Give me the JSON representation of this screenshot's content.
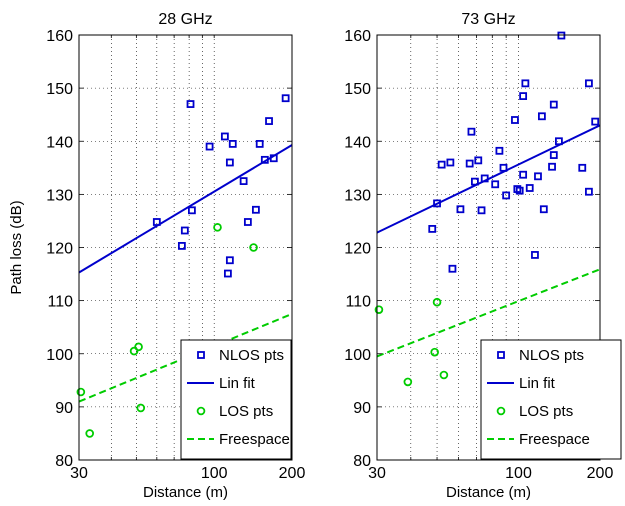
{
  "chart_data": [
    {
      "type": "scatter",
      "title": "28 GHz",
      "xlabel": "Distance (m)",
      "ylabel": "Path loss (dB)",
      "xscale": "log",
      "xlim": [
        30,
        200
      ],
      "ylim": [
        80,
        160
      ],
      "xticks": [
        30,
        100,
        200
      ],
      "xtick_labels": [
        "30",
        "100",
        "200"
      ],
      "yticks": [
        80,
        90,
        100,
        110,
        120,
        130,
        140,
        150,
        160
      ],
      "ytick_labels": [
        "80",
        "90",
        "100",
        "110",
        "120",
        "130",
        "140",
        "150",
        "160"
      ],
      "grid": "dotted",
      "legend_position": "bottom-right",
      "series": [
        {
          "name": "NLOS pts",
          "kind": "points",
          "marker": "square",
          "color": "#0000cc",
          "points": [
            [
              60,
              124.8
            ],
            [
              75,
              120.3
            ],
            [
              77,
              123.2
            ],
            [
              81,
              147
            ],
            [
              82,
              127
            ],
            [
              96,
              139
            ],
            [
              110,
              140.9
            ],
            [
              113,
              115.1
            ],
            [
              115,
              117.6
            ],
            [
              115,
              136
            ],
            [
              118,
              139.5
            ],
            [
              130,
              132.5
            ],
            [
              135,
              124.8
            ],
            [
              145,
              127.1
            ],
            [
              150,
              139.5
            ],
            [
              157,
              136.5
            ],
            [
              163,
              143.8
            ],
            [
              170,
              136.8
            ],
            [
              189,
              148.1
            ]
          ]
        },
        {
          "name": "Lin fit",
          "kind": "line",
          "color": "#0000cc",
          "points": [
            [
              30,
              115.3
            ],
            [
              200,
              139.3
            ]
          ]
        },
        {
          "name": "LOS pts",
          "kind": "points",
          "marker": "circle",
          "color": "#00cc00",
          "points": [
            [
              30.5,
              92.8
            ],
            [
              33,
              85
            ],
            [
              49,
              100.5
            ],
            [
              51,
              101.3
            ],
            [
              52,
              89.8
            ],
            [
              103,
              123.8
            ],
            [
              142,
              120
            ]
          ]
        },
        {
          "name": "Freespace",
          "kind": "line",
          "dashed": true,
          "color": "#00cc00",
          "points": [
            [
              30,
              91
            ],
            [
              200,
              107.5
            ]
          ]
        }
      ]
    },
    {
      "type": "scatter",
      "title": "73 GHz",
      "xlabel": "Distance (m)",
      "ylabel": "",
      "xscale": "log",
      "xlim": [
        30,
        200
      ],
      "ylim": [
        80,
        160
      ],
      "xticks": [
        30,
        100,
        200
      ],
      "xtick_labels": [
        "30",
        "100",
        "200"
      ],
      "yticks": [
        80,
        90,
        100,
        110,
        120,
        130,
        140,
        150,
        160
      ],
      "ytick_labels": [
        "80",
        "90",
        "100",
        "110",
        "120",
        "130",
        "140",
        "150",
        "160"
      ],
      "grid": "dotted",
      "legend_position": "bottom-right",
      "series": [
        {
          "name": "NLOS pts",
          "kind": "points",
          "marker": "square",
          "color": "#0000cc",
          "points": [
            [
              48,
              123.5
            ],
            [
              50,
              128.3
            ],
            [
              52,
              135.6
            ],
            [
              56,
              136
            ],
            [
              57,
              116
            ],
            [
              61,
              127.2
            ],
            [
              66,
              135.8
            ],
            [
              67,
              141.8
            ],
            [
              69,
              132.4
            ],
            [
              71,
              136.4
            ],
            [
              73,
              127
            ],
            [
              75,
              133
            ],
            [
              82,
              131.9
            ],
            [
              85,
              138.2
            ],
            [
              88,
              135
            ],
            [
              90,
              129.8
            ],
            [
              97,
              144
            ],
            [
              99,
              131
            ],
            [
              101,
              130.7
            ],
            [
              104,
              133.7
            ],
            [
              104,
              148.5
            ],
            [
              106,
              150.9
            ],
            [
              110,
              131.2
            ],
            [
              115,
              118.6
            ],
            [
              118,
              133.4
            ],
            [
              122,
              144.7
            ],
            [
              124,
              127.2
            ],
            [
              133,
              135.2
            ],
            [
              135,
              137.4
            ],
            [
              135,
              146.9
            ],
            [
              141,
              140
            ],
            [
              144,
              159.9
            ],
            [
              172,
              135
            ],
            [
              182,
              130.5
            ],
            [
              182,
              150.9
            ],
            [
              192,
              143.7
            ]
          ]
        },
        {
          "name": "Lin fit",
          "kind": "line",
          "color": "#0000cc",
          "points": [
            [
              30,
              122.8
            ],
            [
              200,
              143
            ]
          ]
        },
        {
          "name": "LOS pts",
          "kind": "points",
          "marker": "circle",
          "color": "#00cc00",
          "points": [
            [
              30.5,
              108.3
            ],
            [
              39,
              94.7
            ],
            [
              49,
              100.3
            ],
            [
              50,
              109.7
            ],
            [
              53,
              96
            ]
          ]
        },
        {
          "name": "Freespace",
          "kind": "line",
          "dashed": true,
          "color": "#00cc00",
          "points": [
            [
              30,
              99.5
            ],
            [
              200,
              115.9
            ]
          ]
        }
      ]
    }
  ]
}
